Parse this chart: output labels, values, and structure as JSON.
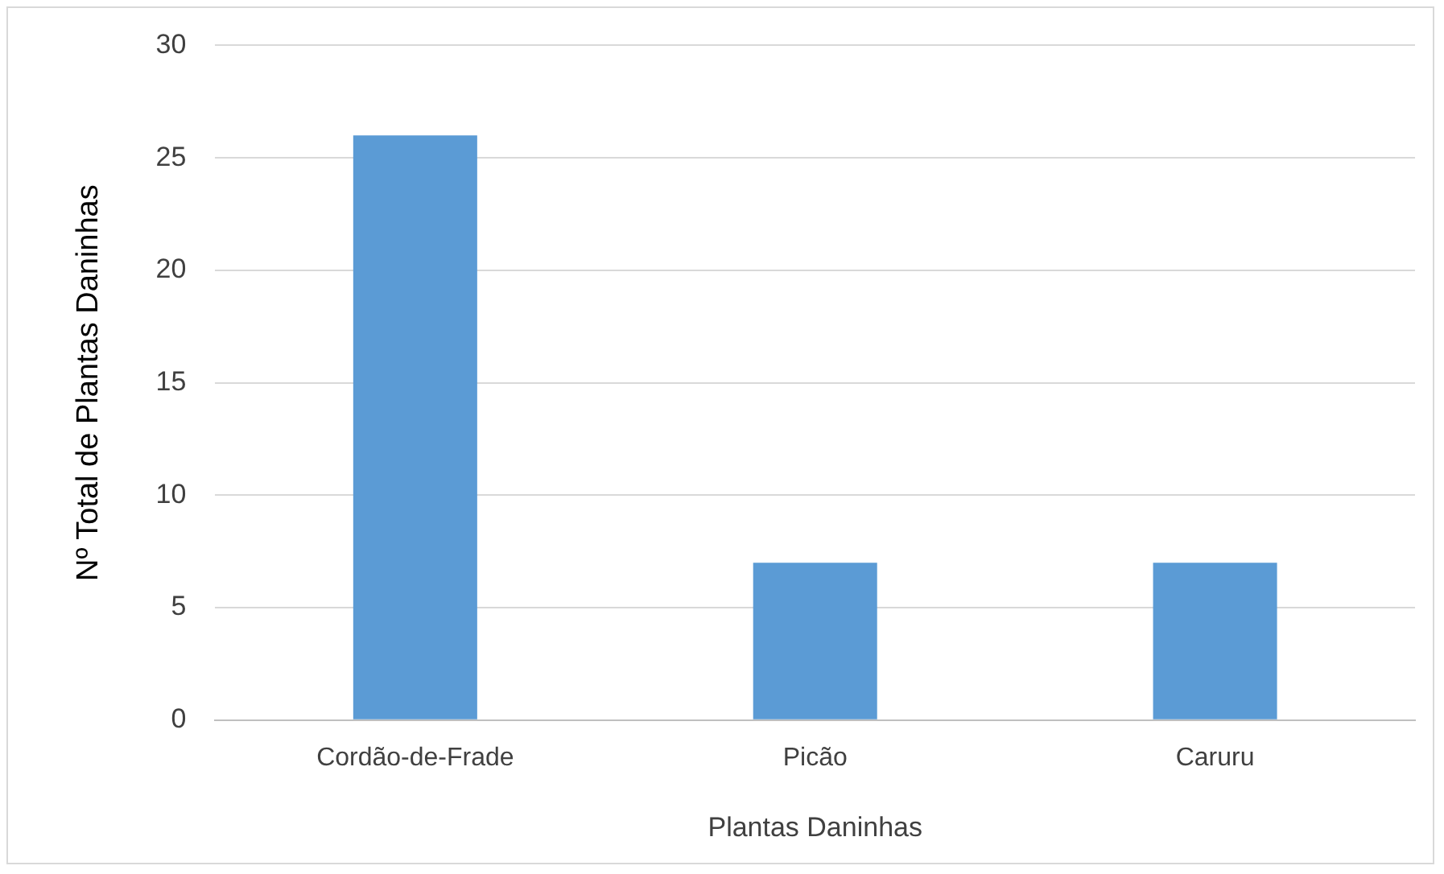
{
  "chart_data": {
    "type": "bar",
    "xlabel": "Plantas Daninhas",
    "ylabel": "Nº Total de Plantas Daninhas",
    "categories": [
      "Cordão-de-Frade",
      "Picão",
      "Caruru"
    ],
    "values": [
      26,
      7,
      7
    ],
    "color": "#5b9bd5",
    "ylim": [
      0,
      30
    ],
    "yticks": [
      0,
      5,
      10,
      15,
      20,
      25,
      30
    ],
    "grid": "y",
    "legend": false
  }
}
